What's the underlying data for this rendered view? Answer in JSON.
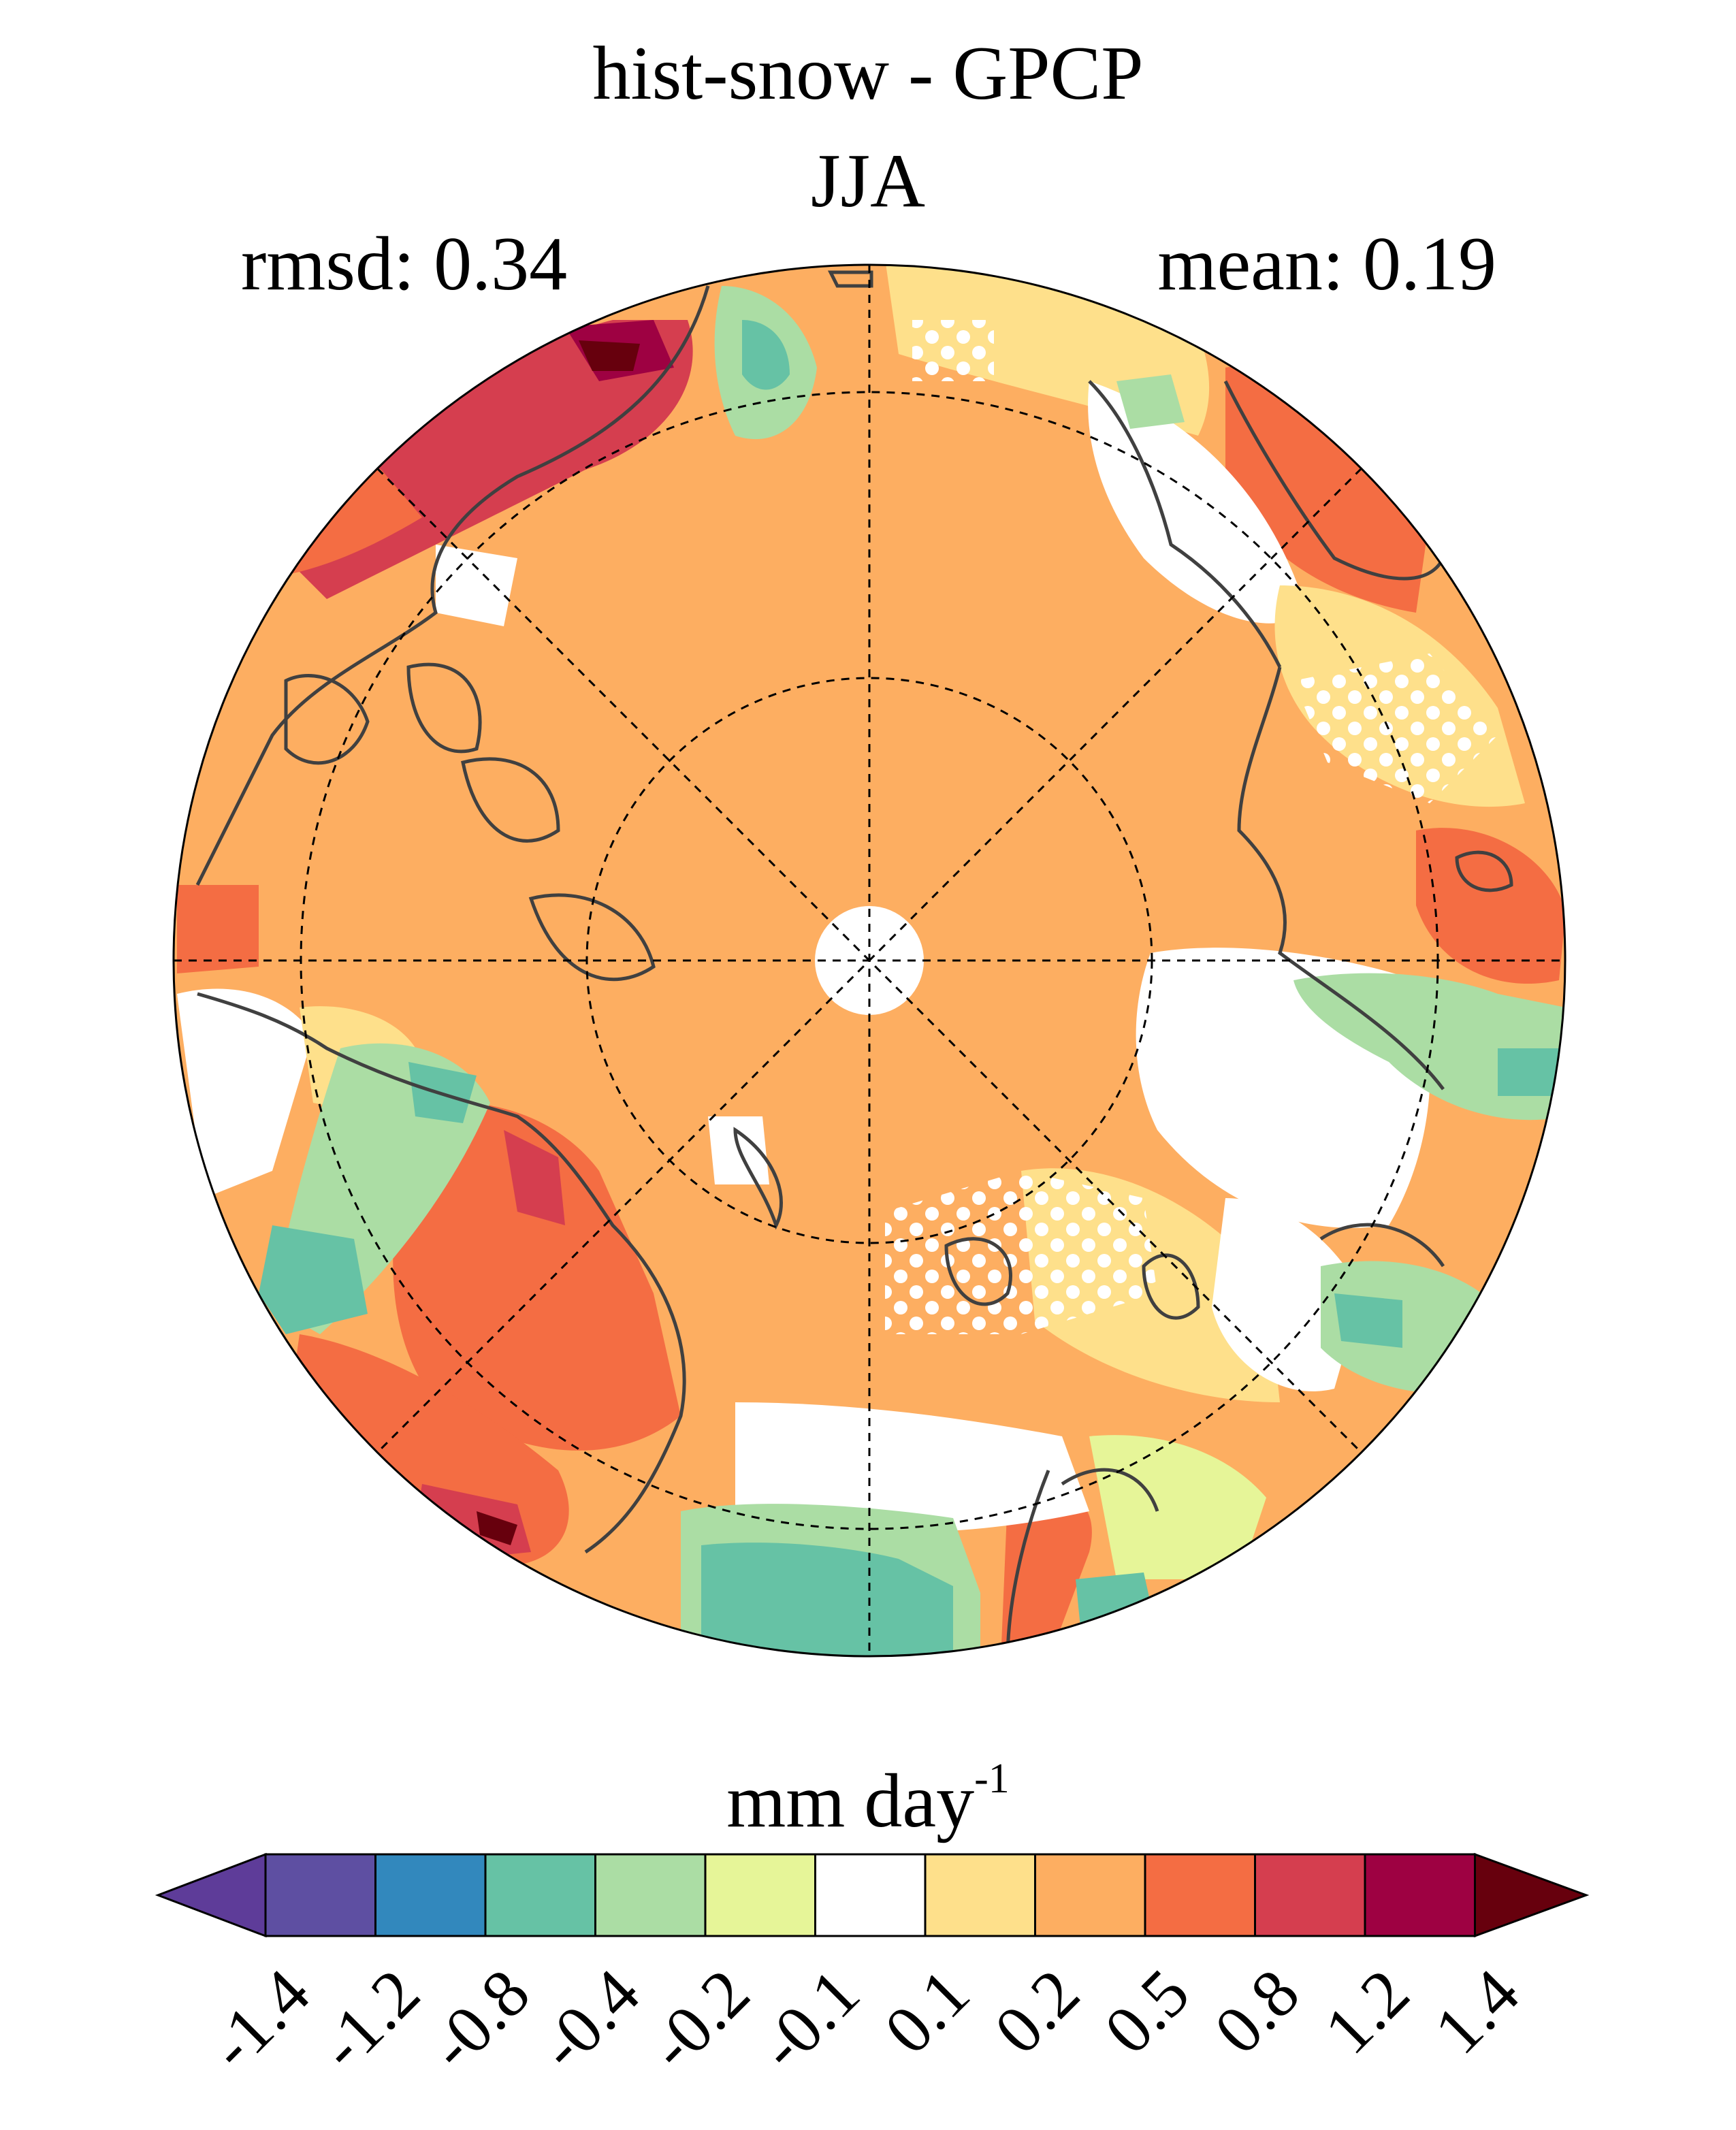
{
  "title": {
    "line1": "hist-snow - GPCP",
    "line2": "JJA"
  },
  "stats": {
    "rmsd": "rmsd: 0.34",
    "mean": "mean: 0.19"
  },
  "map": {
    "projection": "north polar stereographic",
    "hatching": "white dots mark non-significant regions"
  },
  "colorbar": {
    "units_main": "mm day",
    "units_exp": "-1",
    "tick_labels": [
      "-1.4",
      "-1.2",
      "-0.8",
      "-0.4",
      "-0.2",
      "-0.1",
      "0.1",
      "0.2",
      "0.5",
      "0.8",
      "1.2",
      "1.4"
    ],
    "colors": [
      "#5e3c99",
      "#5e4fa2",
      "#3288bd",
      "#66c2a5",
      "#abdda4",
      "#e6f598",
      "#ffffff",
      "#fee08b",
      "#fdae61",
      "#f46d43",
      "#d53e4f",
      "#9e0142",
      "#67000d"
    ],
    "extend": "both"
  }
}
